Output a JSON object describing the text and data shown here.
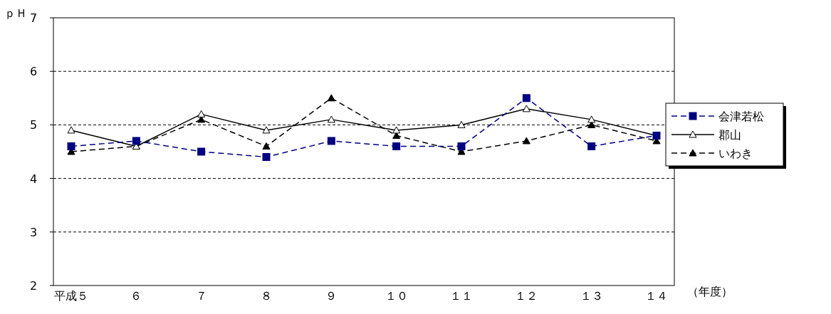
{
  "chart_data": {
    "type": "line",
    "ylabel": "ｐＨ",
    "xlabel": "（年度）",
    "categories": [
      "平成５",
      "６",
      "７",
      "８",
      "９",
      "１０",
      "１１",
      "１２",
      "１３",
      "１４"
    ],
    "ylim": [
      2,
      7
    ],
    "yticks": [
      2,
      3,
      4,
      5,
      6,
      7
    ],
    "grid": "y",
    "legend": "right",
    "series": [
      {
        "name": "会津若松",
        "color": "#000080",
        "marker": "square",
        "line_style": "dashed",
        "values": [
          4.6,
          4.7,
          4.5,
          4.4,
          4.7,
          4.6,
          4.6,
          5.5,
          4.6,
          4.8
        ]
      },
      {
        "name": "郡山",
        "color": "#000000",
        "marker": "triangle-open",
        "line_style": "solid",
        "values": [
          4.9,
          4.6,
          5.2,
          4.9,
          5.1,
          4.9,
          5.0,
          5.3,
          5.1,
          4.8
        ]
      },
      {
        "name": "いわき",
        "color": "#000000",
        "marker": "triangle",
        "line_style": "dashed",
        "values": [
          4.5,
          4.6,
          5.1,
          4.6,
          5.5,
          4.8,
          4.5,
          4.7,
          5.0,
          4.7
        ]
      }
    ]
  }
}
